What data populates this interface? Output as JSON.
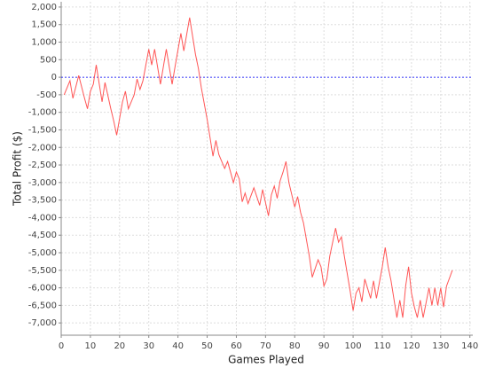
{
  "chart_data": {
    "type": "line",
    "x_label": "Games Played",
    "y_label": "Total Profit ($)",
    "xlim": [
      0,
      141
    ],
    "ylim": [
      -7350,
      2150
    ],
    "xticks": [
      0,
      10,
      20,
      30,
      40,
      50,
      60,
      70,
      80,
      90,
      100,
      110,
      120,
      130,
      140
    ],
    "yticks": [
      {
        "value": -7000,
        "label": "-7,000"
      },
      {
        "value": -6500,
        "label": "-6,500"
      },
      {
        "value": -6000,
        "label": "-6,000"
      },
      {
        "value": -5500,
        "label": "-5,500"
      },
      {
        "value": -5000,
        "label": "-5,000"
      },
      {
        "value": -4500,
        "label": "-4,500"
      },
      {
        "value": -4000,
        "label": "-4,000"
      },
      {
        "value": -3500,
        "label": "-3,500"
      },
      {
        "value": -3000,
        "label": "-3,000"
      },
      {
        "value": -2500,
        "label": "-2,500"
      },
      {
        "value": -2000,
        "label": "-2,000"
      },
      {
        "value": -1500,
        "label": "-1,500"
      },
      {
        "value": -1000,
        "label": "-1,000"
      },
      {
        "value": -500,
        "label": "-500"
      },
      0,
      500,
      {
        "value": 1000,
        "label": "1,000"
      },
      {
        "value": 1500,
        "label": "1,500"
      },
      {
        "value": 2000,
        "label": "2,000"
      }
    ],
    "grid": true,
    "markers": [
      {
        "value": 0,
        "color": "#0000ff"
      }
    ],
    "series": [
      {
        "color": "#ff5555",
        "x": [
          1,
          3,
          4,
          6,
          8,
          9,
          10,
          11,
          12,
          14,
          15,
          17,
          18,
          19,
          21,
          22,
          23,
          25,
          26,
          27,
          28,
          29,
          30,
          31,
          32,
          34,
          36,
          38,
          39,
          41,
          42,
          44,
          46,
          47,
          48,
          50,
          52,
          53,
          54,
          56,
          57,
          59,
          60,
          61,
          62,
          63,
          64,
          66,
          67,
          68,
          69,
          71,
          72,
          73,
          74,
          75,
          76,
          77,
          78,
          80,
          81,
          82,
          83,
          85,
          86,
          88,
          89,
          90,
          91,
          92,
          94,
          95,
          96,
          97,
          99,
          100,
          101,
          102,
          103,
          104,
          106,
          107,
          108,
          110,
          111,
          112,
          113,
          115,
          116,
          117,
          118,
          119,
          120,
          121,
          122,
          123,
          124,
          126,
          127,
          128,
          129,
          130,
          131,
          132,
          134
        ],
        "values": [
          -500,
          -100,
          -600,
          50,
          -600,
          -900,
          -400,
          -200,
          350,
          -700,
          -150,
          -900,
          -1250,
          -1650,
          -700,
          -400,
          -900,
          -500,
          -50,
          -350,
          -100,
          350,
          800,
          350,
          800,
          -200,
          800,
          -200,
          300,
          1250,
          750,
          1700,
          650,
          250,
          -300,
          -1200,
          -2250,
          -1800,
          -2200,
          -2600,
          -2400,
          -3000,
          -2700,
          -2900,
          -3550,
          -3300,
          -3600,
          -3150,
          -3400,
          -3650,
          -3200,
          -3950,
          -3350,
          -3100,
          -3450,
          -2950,
          -2700,
          -2400,
          -3000,
          -3700,
          -3400,
          -3850,
          -4150,
          -5100,
          -5700,
          -5200,
          -5400,
          -5950,
          -5750,
          -5100,
          -4300,
          -4700,
          -4550,
          -5100,
          -6100,
          -6650,
          -6150,
          -6000,
          -6400,
          -5750,
          -6300,
          -5800,
          -6300,
          -5400,
          -4850,
          -5400,
          -5800,
          -6850,
          -6350,
          -6850,
          -5950,
          -5400,
          -6150,
          -6550,
          -6850,
          -6350,
          -6850,
          -6000,
          -6500,
          -6000,
          -6500,
          -6000,
          -6550,
          -5950,
          -5500
        ]
      }
    ]
  }
}
